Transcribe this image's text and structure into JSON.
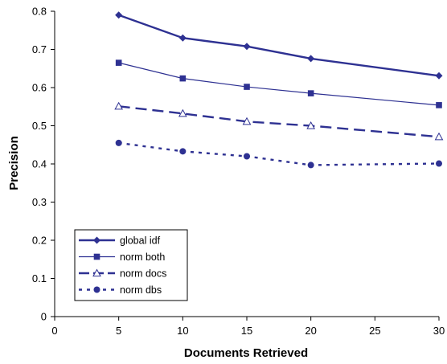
{
  "chart_data": {
    "type": "line",
    "title": "",
    "xlabel": "Documents Retrieved",
    "ylabel": "Precision",
    "xlim": [
      0,
      30
    ],
    "ylim": [
      0,
      0.8
    ],
    "x_ticks": [
      "0",
      "5",
      "10",
      "15",
      "20",
      "25",
      "30"
    ],
    "y_ticks": [
      "0",
      "0.1",
      "0.2",
      "0.3",
      "0.4",
      "0.5",
      "0.6",
      "0.7",
      "0.8"
    ],
    "grid": false,
    "legend_position": "bottom-left",
    "x": [
      5,
      10,
      15,
      20,
      30
    ],
    "series": [
      {
        "name": "global idf",
        "values": [
          0.79,
          0.73,
          0.708,
          0.676,
          0.631
        ],
        "color": "#2e3192",
        "marker": "diamond",
        "line": "solid-thick"
      },
      {
        "name": "norm both",
        "values": [
          0.665,
          0.624,
          0.602,
          0.585,
          0.554
        ],
        "color": "#2e3192",
        "marker": "square",
        "line": "solid-thin"
      },
      {
        "name": "norm docs",
        "values": [
          0.551,
          0.532,
          0.511,
          0.5,
          0.471
        ],
        "color": "#2e3192",
        "marker": "triangle-open",
        "line": "long-dash"
      },
      {
        "name": "norm dbs",
        "values": [
          0.455,
          0.433,
          0.42,
          0.397,
          0.401
        ],
        "color": "#2e3192",
        "marker": "circle",
        "line": "dotted"
      }
    ]
  }
}
